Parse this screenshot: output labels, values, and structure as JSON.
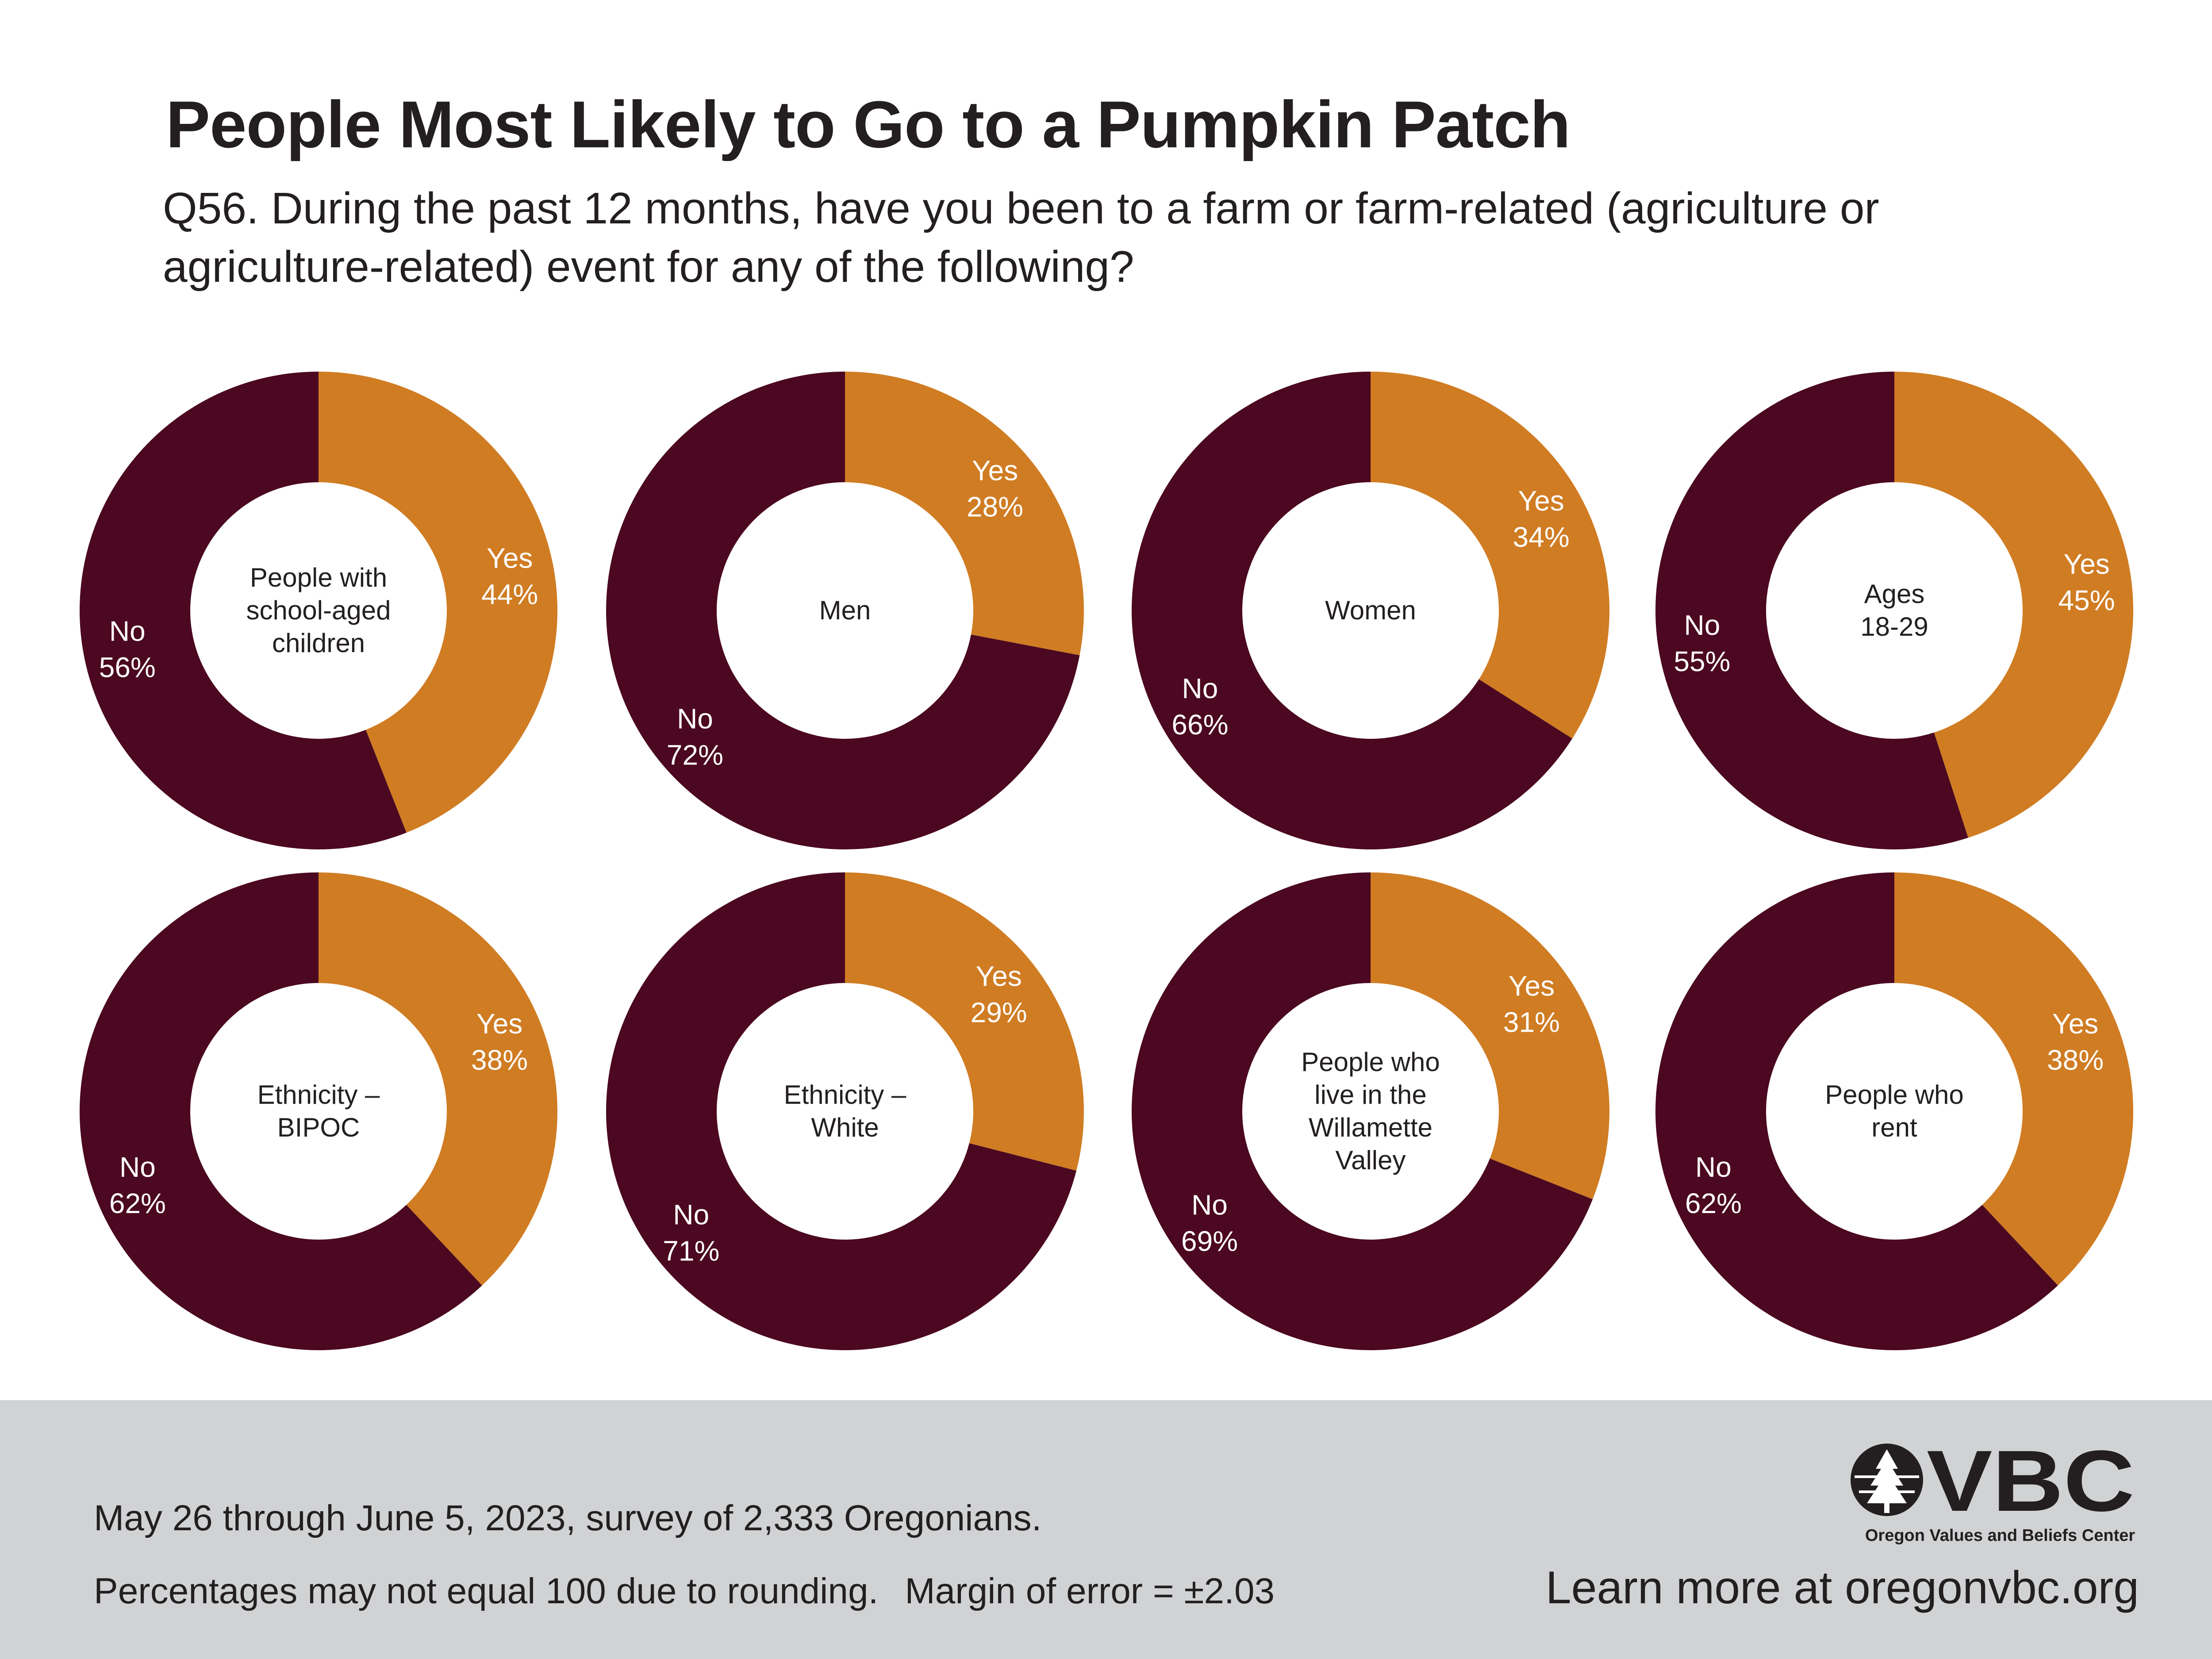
{
  "title": "People Most Likely to Go to a Pumpkin Patch",
  "subtitle": "Q56. During the past 12 months, have you been to a farm or farm-related (agriculture or agriculture-related) event for any of the following?",
  "colors": {
    "yes": "#d07c23",
    "no": "#4b0820",
    "footer_bg": "#d1d2d4"
  },
  "chart_data": [
    {
      "type": "pie",
      "group": "People with school-aged children",
      "center_lines": [
        "People with",
        "school-aged",
        "children"
      ],
      "slices": [
        {
          "name": "Yes",
          "value": 44
        },
        {
          "name": "No",
          "value": 56
        }
      ]
    },
    {
      "type": "pie",
      "group": "Men",
      "center_lines": [
        "Men"
      ],
      "slices": [
        {
          "name": "Yes",
          "value": 28
        },
        {
          "name": "No",
          "value": 72
        }
      ]
    },
    {
      "type": "pie",
      "group": "Women",
      "center_lines": [
        "Women"
      ],
      "slices": [
        {
          "name": "Yes",
          "value": 34
        },
        {
          "name": "No",
          "value": 66
        }
      ]
    },
    {
      "type": "pie",
      "group": "Ages 18-29",
      "center_lines": [
        "Ages",
        "18-29"
      ],
      "slices": [
        {
          "name": "Yes",
          "value": 45
        },
        {
          "name": "No",
          "value": 55
        }
      ]
    },
    {
      "type": "pie",
      "group": "Ethnicity – BIPOC",
      "center_lines": [
        "Ethnicity –",
        "BIPOC"
      ],
      "slices": [
        {
          "name": "Yes",
          "value": 38
        },
        {
          "name": "No",
          "value": 62
        }
      ]
    },
    {
      "type": "pie",
      "group": "Ethnicity – White",
      "center_lines": [
        "Ethnicity –",
        "White"
      ],
      "slices": [
        {
          "name": "Yes",
          "value": 29
        },
        {
          "name": "No",
          "value": 71
        }
      ]
    },
    {
      "type": "pie",
      "group": "People who live in the Willamette Valley",
      "center_lines": [
        "People who",
        "live in the",
        "Willamette",
        "Valley"
      ],
      "slices": [
        {
          "name": "Yes",
          "value": 31
        },
        {
          "name": "No",
          "value": 69
        }
      ]
    },
    {
      "type": "pie",
      "group": "People who rent",
      "center_lines": [
        "People who",
        "rent"
      ],
      "slices": [
        {
          "name": "Yes",
          "value": 38
        },
        {
          "name": "No",
          "value": 62
        }
      ]
    }
  ],
  "footer": {
    "survey_note": "May 26 through June 5, 2023, survey of 2,333 Oregonians.",
    "rounding_note": "Percentages may not equal 100 due to rounding.",
    "margin_note": "Margin of error = ±2.03",
    "logo_text": "VBC",
    "org_name": "Oregon Values and Beliefs Center",
    "learn_more": "Learn more at oregonvbc.org"
  }
}
